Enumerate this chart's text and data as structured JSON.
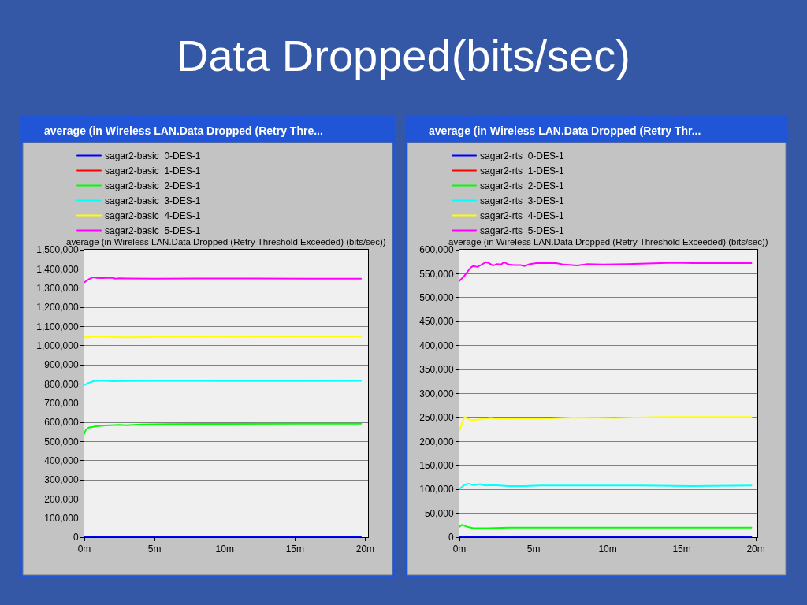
{
  "chart_data": [
    {
      "type": "other",
      "title": "Data Dropped(bits/sec)"
    },
    {
      "type": "line",
      "title": "average (in Wireless LAN.Data Dropped (Retry Thre...",
      "subtitle": "average (in Wireless LAN.Data Dropped (Retry Threshold Exceeded) (bits/sec))",
      "xlim": [
        0,
        20.2
      ],
      "xticks": [
        {
          "value": 0,
          "label": "0m"
        },
        {
          "value": 5,
          "label": "5m"
        },
        {
          "value": 10,
          "label": "10m"
        },
        {
          "value": 15,
          "label": "15m"
        },
        {
          "value": 20,
          "label": "20m"
        }
      ],
      "ylim": [
        0,
        1500000
      ],
      "yticks": [
        0,
        {
          "value": 100000,
          "label": "100,000"
        },
        {
          "value": 200000,
          "label": "200,000"
        },
        {
          "value": 300000,
          "label": "300,000"
        },
        {
          "value": 400000,
          "label": "400,000"
        },
        {
          "value": 500000,
          "label": "500,000"
        },
        {
          "value": 600000,
          "label": "600,000"
        },
        {
          "value": 700000,
          "label": "700,000"
        },
        {
          "value": 800000,
          "label": "800,000"
        },
        {
          "value": 900000,
          "label": "900,000"
        },
        {
          "value": 1000000,
          "label": "1,000,000"
        },
        {
          "value": 1100000,
          "label": "1,100,000"
        },
        {
          "value": 1200000,
          "label": "1,200,000"
        },
        {
          "value": 1300000,
          "label": "1,300,000"
        },
        {
          "value": 1400000,
          "label": "1,400,000"
        },
        {
          "value": 1500000,
          "label": "1,500,000"
        }
      ],
      "grid": "y",
      "legend": "top left",
      "series": [
        {
          "name": "sagar2-basic_0-DES-1",
          "color": "#0000ff",
          "x": [
            0,
            19.7
          ],
          "values": [
            0,
            0
          ]
        },
        {
          "name": "sagar2-basic_1-DES-1",
          "color": "#ff0000",
          "values": [
            null,
            null
          ]
        },
        {
          "name": "sagar2-basic_2-DES-1",
          "color": "#00ff00",
          "x": [
            0,
            0.1,
            0.3,
            0.8,
            1.5,
            2.5,
            3,
            4,
            6,
            10,
            15,
            19.7
          ],
          "values": [
            540000,
            560000,
            572000,
            579000,
            584000,
            587000,
            585000,
            589000,
            591000,
            592000,
            593000,
            593000
          ]
        },
        {
          "name": "sagar2-basic_3-DES-1",
          "color": "#00ffff",
          "x": [
            0,
            0.3,
            0.7,
            1.2,
            2,
            3,
            5,
            10,
            15,
            19.7
          ],
          "values": [
            795000,
            805000,
            815000,
            818000,
            814000,
            815000,
            816000,
            815000,
            815000,
            816000
          ]
        },
        {
          "name": "sagar2-basic_4-DES-1",
          "color": "#ffff00",
          "x": [
            0,
            0.2,
            0.5,
            1,
            2,
            3,
            5,
            8,
            12,
            16,
            19.7
          ],
          "values": [
            1050000,
            1040000,
            1048000,
            1047000,
            1045000,
            1043000,
            1045000,
            1046000,
            1047000,
            1048000,
            1048000
          ]
        },
        {
          "name": "sagar2-basic_5-DES-1",
          "color": "#ff00ff",
          "x": [
            0,
            0.3,
            0.6,
            0.9,
            1.2,
            1.6,
            2,
            2.2,
            2.5,
            3,
            5,
            8,
            12,
            16,
            19.7
          ],
          "values": [
            1330000,
            1345000,
            1356000,
            1353000,
            1352000,
            1353000,
            1354000,
            1349000,
            1351000,
            1350000,
            1349000,
            1350000,
            1350000,
            1349000,
            1349000
          ]
        }
      ]
    },
    {
      "type": "line",
      "title": "average (in Wireless LAN.Data Dropped (Retry Thr...",
      "subtitle": "average (in Wireless LAN.Data Dropped (Retry Threshold Exceeded) (bits/sec))",
      "xlim": [
        0,
        20.1
      ],
      "xticks": [
        {
          "value": 0,
          "label": "0m"
        },
        {
          "value": 5,
          "label": "5m"
        },
        {
          "value": 10,
          "label": "10m"
        },
        {
          "value": 15,
          "label": "15m"
        },
        {
          "value": 20,
          "label": "20m"
        }
      ],
      "ylim": [
        0,
        600000
      ],
      "yticks": [
        0,
        {
          "value": 50000,
          "label": "50,000"
        },
        {
          "value": 100000,
          "label": "100,000"
        },
        {
          "value": 150000,
          "label": "150,000"
        },
        {
          "value": 200000,
          "label": "200,000"
        },
        {
          "value": 250000,
          "label": "250,000"
        },
        {
          "value": 300000,
          "label": "300,000"
        },
        {
          "value": 350000,
          "label": "350,000"
        },
        {
          "value": 400000,
          "label": "400,000"
        },
        {
          "value": 450000,
          "label": "450,000"
        },
        {
          "value": 500000,
          "label": "500,000"
        },
        {
          "value": 550000,
          "label": "550,000"
        },
        {
          "value": 600000,
          "label": "600,000"
        }
      ],
      "grid": "y",
      "legend": "top left",
      "series": [
        {
          "name": "sagar2-rts_0-DES-1",
          "color": "#0000ff",
          "x": [
            0,
            19.7
          ],
          "values": [
            0,
            0
          ]
        },
        {
          "name": "sagar2-rts_1-DES-1",
          "color": "#ff0000",
          "values": [
            null,
            null
          ]
        },
        {
          "name": "sagar2-rts_2-DES-1",
          "color": "#00ff00",
          "x": [
            0,
            0.18,
            0.5,
            0.94,
            1.91,
            3.33,
            6.88,
            13.97,
            19.7
          ],
          "values": [
            22000,
            26000,
            22000,
            19000,
            19000,
            20000,
            20000,
            20000,
            20000
          ]
        },
        {
          "name": "sagar2-rts_3-DES-1",
          "color": "#00ffff",
          "x": [
            0,
            0.32,
            0.59,
            0.94,
            1.38,
            1.74,
            2.27,
            3.33,
            4.4,
            5.46,
            8.65,
            12.2,
            15.74,
            19.7
          ],
          "values": [
            101000,
            109000,
            112000,
            109000,
            111000,
            108000,
            109000,
            107000,
            107000,
            108000,
            108000,
            108000,
            107000,
            108000
          ]
        },
        {
          "name": "sagar2-rts_4-DES-1",
          "color": "#ffff00",
          "x": [
            0,
            0.18,
            0.35,
            0.59,
            0.85,
            1.38,
            2.09,
            2.8,
            4.22,
            5.82,
            7.59,
            10.43,
            13.97,
            19.7
          ],
          "values": [
            223000,
            239000,
            251000,
            247000,
            244000,
            246000,
            249000,
            247000,
            248000,
            248000,
            250000,
            249000,
            251000,
            251000
          ]
        },
        {
          "name": "sagar2-rts_5-DES-1",
          "color": "#ff00ff",
          "x": [
            0,
            0.32,
            0.76,
            0.94,
            1.21,
            1.56,
            1.77,
            2.0,
            2.27,
            2.54,
            2.8,
            3.01,
            3.33,
            3.69,
            4.13,
            4.4,
            4.75,
            5.19,
            5.82,
            6.52,
            7.06,
            7.94,
            8.65,
            9.72,
            11.31,
            12.2,
            14.5,
            15.74,
            17.52,
            19.7
          ],
          "values": [
            535000,
            545000,
            563000,
            566000,
            564000,
            570000,
            574000,
            572000,
            567000,
            570000,
            569000,
            574000,
            569000,
            568000,
            568000,
            566000,
            570000,
            572000,
            572000,
            572000,
            569000,
            567000,
            570000,
            569000,
            570000,
            571000,
            573000,
            572000,
            572000,
            572000
          ]
        }
      ]
    }
  ]
}
